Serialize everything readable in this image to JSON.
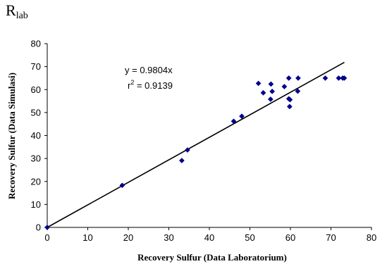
{
  "header": {
    "title_main": "R",
    "title_sub": "lab"
  },
  "chart_data": {
    "type": "scatter",
    "title": "Rlab",
    "xlabel": "Recovery Sulfur (Data Laboratorium)",
    "ylabel": "Recovery Sulfur (Data Simulasi)",
    "xlim": [
      0,
      80
    ],
    "ylim": [
      0,
      80
    ],
    "xticks": [
      0,
      10,
      20,
      30,
      40,
      50,
      60,
      70,
      80
    ],
    "yticks": [
      0,
      10,
      20,
      30,
      40,
      50,
      60,
      70,
      80
    ],
    "grid": false,
    "marker_color": "#00008b",
    "points": [
      [
        0,
        0
      ],
      [
        18.5,
        18.3
      ],
      [
        33.2,
        29.1
      ],
      [
        34.6,
        33.7
      ],
      [
        46.0,
        46.2
      ],
      [
        48.0,
        48.4
      ],
      [
        52.1,
        62.7
      ],
      [
        53.3,
        58.6
      ],
      [
        55.1,
        55.8
      ],
      [
        55.2,
        62.4
      ],
      [
        55.5,
        59.2
      ],
      [
        58.5,
        61.3
      ],
      [
        59.6,
        65.0
      ],
      [
        59.6,
        56.0
      ],
      [
        59.8,
        52.6
      ],
      [
        59.9,
        55.6
      ],
      [
        61.9,
        65.0
      ],
      [
        61.8,
        59.3
      ],
      [
        68.6,
        65.0
      ],
      [
        71.9,
        65.0
      ],
      [
        72.9,
        65.0
      ],
      [
        73.3,
        65.0
      ]
    ],
    "trendline": {
      "slope": 0.9804,
      "x_range": [
        0,
        73.3
      ],
      "color": "#000000",
      "equation": "y = 0.9804x",
      "r2_label": "r",
      "r2_exp": "2",
      "r2_value": " = 0.9139"
    }
  }
}
